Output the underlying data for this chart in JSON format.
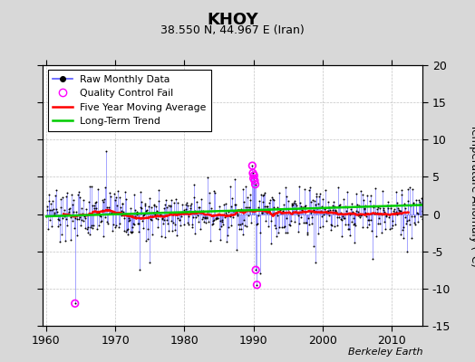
{
  "title": "KHOY",
  "subtitle": "38.550 N, 44.967 E (Iran)",
  "ylabel_right": "Temperature Anomaly (°C)",
  "attribution": "Berkeley Earth",
  "xlim": [
    1959.5,
    2014.5
  ],
  "ylim": [
    -15,
    20
  ],
  "yticks": [
    -15,
    -10,
    -5,
    0,
    5,
    10,
    15,
    20
  ],
  "xticks": [
    1960,
    1970,
    1980,
    1990,
    2000,
    2010
  ],
  "bg_color": "#d8d8d8",
  "plot_bg_color": "#ffffff",
  "raw_line_color": "#5555ff",
  "raw_dot_color": "#000000",
  "qc_color": "#ff00ff",
  "moving_avg_color": "#ff0000",
  "trend_color": "#00cc00",
  "seed": 37
}
